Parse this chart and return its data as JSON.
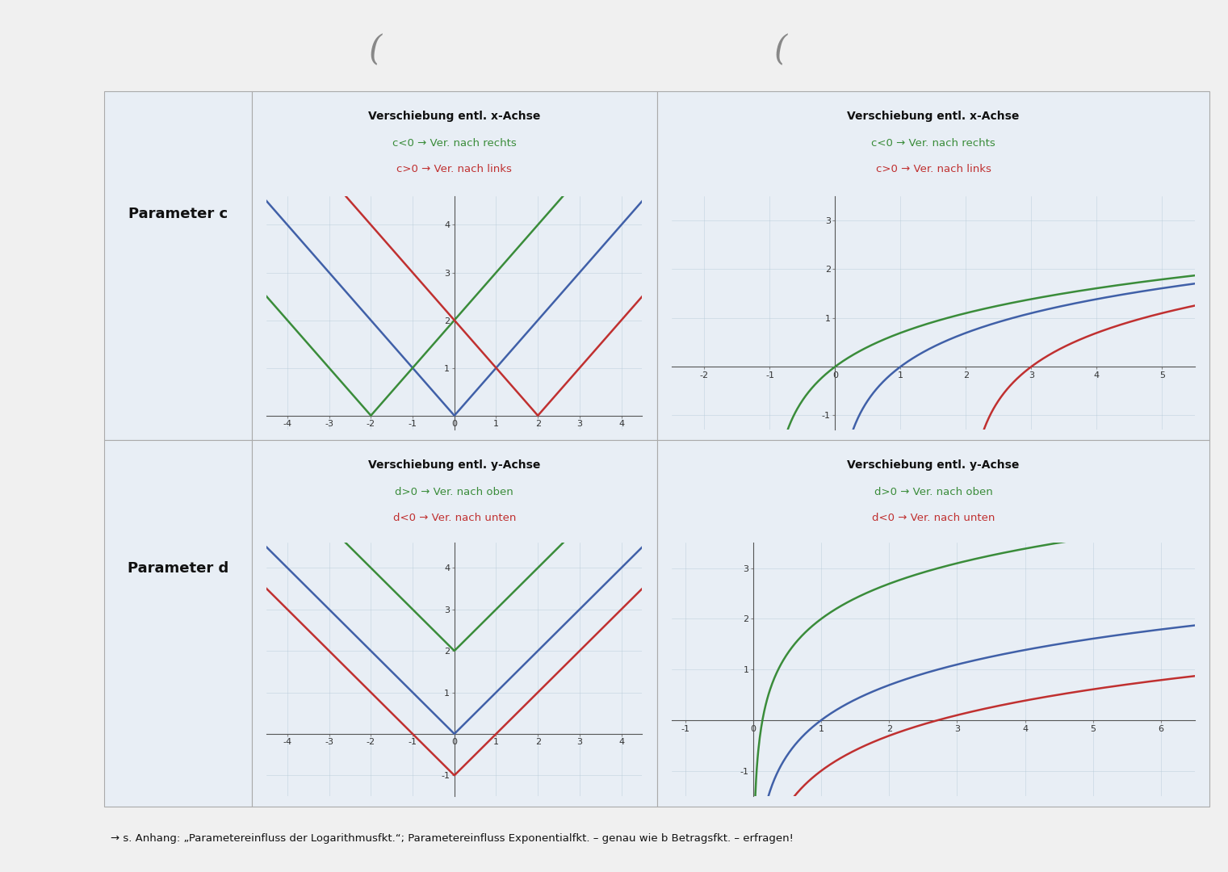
{
  "white": "#ffffff",
  "panel_bg": "#dde6ef",
  "outer_bg": "#f0f0f0",
  "cell_bg": "#e8eef5",
  "blue": "#4060a8",
  "green": "#3a8c3a",
  "red": "#c03030",
  "black": "#111111",
  "border_color": "#aaaaaa",
  "param_c_label": "Parameter c",
  "param_d_label": "Parameter d",
  "tl_title": "Verschiebung entl. x-Achse",
  "tl_line2": "c<0 → Ver. nach rechts",
  "tl_line3": "c>0 → Ver. nach links",
  "tr_title": "Verschiebung entl. x-Achse",
  "tr_line2": "c<0 → Ver. nach rechts",
  "tr_line3": "c>0 → Ver. nach links",
  "bl_title": "Verschiebung entl. y-Achse",
  "bl_line2": "d>0 → Ver. nach oben",
  "bl_line3": "d<0 → Ver. nach unten",
  "br_title": "Verschiebung entl. y-Achse",
  "br_line2": "d>0 → Ver. nach oben",
  "br_line3": "d<0 → Ver. nach unten",
  "footer": "→ s. Anhang: „Parametereinfluss der Logarithmusfkt.“; Parametereinfluss Exponentialfkt. – genau wie b Betragsfkt. – erfragen!",
  "abs_c_xlim": [
    -4.5,
    4.5
  ],
  "abs_c_ylim": [
    -0.3,
    4.6
  ],
  "abs_c_xticks": [
    -4,
    -3,
    -2,
    -1,
    0,
    1,
    2,
    3,
    4
  ],
  "abs_c_yticks": [
    1,
    2,
    3,
    4
  ],
  "log_c_xlim": [
    -2.5,
    5.5
  ],
  "log_c_ylim": [
    -1.3,
    3.5
  ],
  "log_c_xticks": [
    -2,
    -1,
    0,
    1,
    2,
    3,
    4,
    5
  ],
  "log_c_yticks": [
    -1,
    1,
    2,
    3
  ],
  "abs_d_xlim": [
    -4.5,
    4.5
  ],
  "abs_d_ylim": [
    -1.5,
    4.6
  ],
  "abs_d_xticks": [
    -4,
    -3,
    -2,
    -1,
    0,
    1,
    2,
    3,
    4
  ],
  "abs_d_yticks": [
    -1,
    1,
    2,
    3,
    4
  ],
  "log_d_xlim": [
    -1.2,
    6.5
  ],
  "log_d_ylim": [
    -1.5,
    3.5
  ],
  "log_d_xticks": [
    -1,
    0,
    1,
    2,
    3,
    4,
    5,
    6
  ],
  "log_d_yticks": [
    -1,
    1,
    2,
    3
  ],
  "abs_c_blue_c": 0,
  "abs_c_green_c": -2,
  "abs_c_red_c": 2,
  "log_c_blue_c": 0,
  "log_c_green_c": -1,
  "log_c_red_c": 2,
  "abs_d_blue_d": 0,
  "abs_d_green_d": 2,
  "abs_d_red_d": -1,
  "log_d_blue_d": 0,
  "log_d_green_d": 2,
  "log_d_red_d": -1
}
